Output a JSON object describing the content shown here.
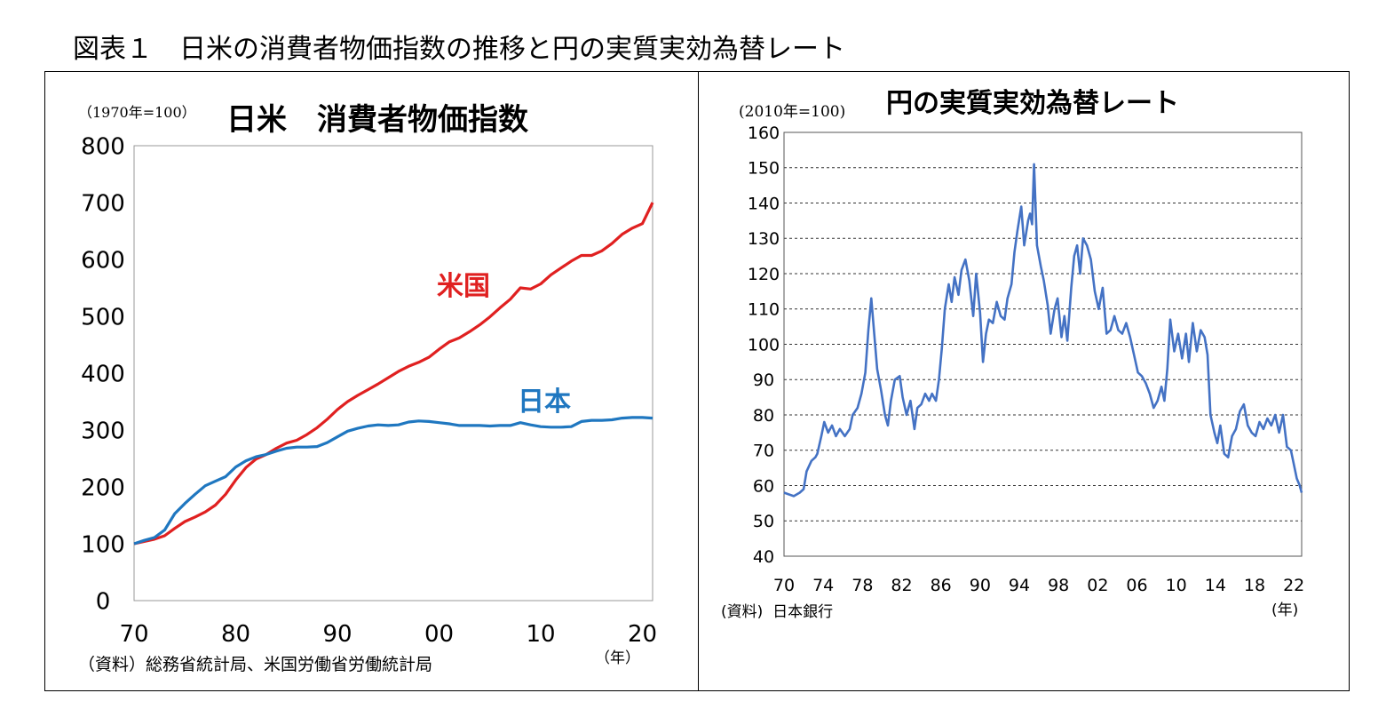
{
  "figure_title": "図表１　日米の消費者物価指数の推移と円の実質実効為替レート",
  "chart_data": [
    {
      "type": "line",
      "title": "日米　消費者物価指数",
      "unit_label": "（1970年=100）",
      "source": "（資料）総務省統計局、米国労働省労働統計局",
      "x_unit": "（年）",
      "xlim": [
        1970,
        2021
      ],
      "ylim": [
        0,
        800
      ],
      "x_ticks": [
        1970,
        1980,
        1990,
        2000,
        2010,
        2020
      ],
      "x_tick_labels": [
        "70",
        "80",
        "90",
        "00",
        "10",
        "20"
      ],
      "y_ticks": [
        0,
        100,
        200,
        300,
        400,
        500,
        600,
        700,
        800
      ],
      "y_tick_labels": [
        "0",
        "100",
        "200",
        "300",
        "400",
        "500",
        "600",
        "700",
        "800"
      ],
      "grid": false,
      "series": [
        {
          "name": "米国",
          "color": "#e02020",
          "x": [
            1970,
            1971,
            1972,
            1973,
            1974,
            1975,
            1976,
            1977,
            1978,
            1979,
            1980,
            1981,
            1982,
            1983,
            1984,
            1985,
            1986,
            1987,
            1988,
            1989,
            1990,
            1991,
            1992,
            1993,
            1994,
            1995,
            1996,
            1997,
            1998,
            1999,
            2000,
            2001,
            2002,
            2003,
            2004,
            2005,
            2006,
            2007,
            2008,
            2009,
            2010,
            2011,
            2012,
            2013,
            2014,
            2015,
            2016,
            2017,
            2018,
            2019,
            2020,
            2021
          ],
          "values": [
            100,
            104,
            108,
            114,
            127,
            139,
            147,
            156,
            168,
            187,
            212,
            234,
            249,
            257,
            268,
            277,
            282,
            292,
            304,
            319,
            336,
            350,
            361,
            371,
            381,
            392,
            403,
            412,
            419,
            428,
            442,
            455,
            462,
            473,
            485,
            499,
            515,
            530,
            550,
            548,
            557,
            573,
            585,
            597,
            607,
            607,
            615,
            628,
            644,
            655,
            663,
            700
          ]
        },
        {
          "name": "日本",
          "color": "#1f77c0",
          "x": [
            1970,
            1971,
            1972,
            1973,
            1974,
            1975,
            1976,
            1977,
            1978,
            1979,
            1980,
            1981,
            1982,
            1983,
            1984,
            1985,
            1986,
            1987,
            1988,
            1989,
            1990,
            1991,
            1992,
            1993,
            1994,
            1995,
            1996,
            1997,
            1998,
            1999,
            2000,
            2001,
            2002,
            2003,
            2004,
            2005,
            2006,
            2007,
            2008,
            2009,
            2010,
            2011,
            2012,
            2013,
            2014,
            2015,
            2016,
            2017,
            2018,
            2019,
            2020,
            2021
          ],
          "values": [
            100,
            106,
            111,
            124,
            153,
            171,
            187,
            202,
            210,
            218,
            235,
            246,
            253,
            257,
            263,
            268,
            270,
            270,
            271,
            278,
            288,
            298,
            303,
            307,
            309,
            308,
            309,
            314,
            316,
            315,
            313,
            311,
            308,
            308,
            308,
            307,
            308,
            308,
            313,
            309,
            306,
            305,
            305,
            306,
            315,
            317,
            317,
            318,
            321,
            322,
            322,
            321
          ]
        }
      ],
      "series_label_position": "inline"
    },
    {
      "type": "line",
      "title": "円の実質実効為替レート",
      "unit_label": "(2010年=100)",
      "source": "(資料)  日本銀行",
      "x_unit": "(年)",
      "xlim": [
        1970,
        2022.8
      ],
      "ylim": [
        40,
        160
      ],
      "x_ticks": [
        1970,
        1974,
        1978,
        1982,
        1986,
        1990,
        1994,
        1998,
        2002,
        2006,
        2010,
        2014,
        2018,
        2022
      ],
      "x_tick_labels": [
        "70",
        "74",
        "78",
        "82",
        "86",
        "90",
        "94",
        "98",
        "02",
        "06",
        "10",
        "14",
        "18",
        "22"
      ],
      "y_ticks": [
        40,
        50,
        60,
        70,
        80,
        90,
        100,
        110,
        120,
        130,
        140,
        150,
        160
      ],
      "y_tick_labels": [
        "40",
        "50",
        "60",
        "70",
        "80",
        "90",
        "100",
        "110",
        "120",
        "130",
        "140",
        "150",
        "160"
      ],
      "grid": "horizontal-dashed",
      "series": [
        {
          "color": "#4472c4",
          "x": [
            1970,
            1971,
            1971.6,
            1972,
            1972.3,
            1972.8,
            1973.2,
            1973.4,
            1973.8,
            1974.1,
            1974.5,
            1974.9,
            1975.3,
            1975.7,
            1976.2,
            1976.7,
            1977,
            1977.5,
            1977.9,
            1978.3,
            1978.6,
            1978.9,
            1979.2,
            1979.5,
            1979.9,
            1980.3,
            1980.6,
            1980.9,
            1981.3,
            1981.8,
            1982.1,
            1982.5,
            1982.9,
            1983.3,
            1983.6,
            1984,
            1984.4,
            1984.8,
            1985.1,
            1985.5,
            1985.8,
            1986.1,
            1986.4,
            1986.8,
            1987.1,
            1987.4,
            1987.8,
            1988.1,
            1988.5,
            1988.9,
            1989.3,
            1989.6,
            1990,
            1990.3,
            1990.6,
            1990.9,
            1991.3,
            1991.7,
            1992.1,
            1992.5,
            1992.8,
            1993.2,
            1993.5,
            1993.8,
            1994.2,
            1994.5,
            1994.9,
            1995.1,
            1995.3,
            1995.5,
            1995.8,
            1996.2,
            1996.5,
            1996.9,
            1997.2,
            1997.6,
            1997.9,
            1998.3,
            1998.6,
            1998.9,
            1999.3,
            1999.6,
            1999.9,
            2000.2,
            2000.5,
            2000.9,
            2001.3,
            2001.7,
            2002.1,
            2002.5,
            2002.9,
            2003.3,
            2003.7,
            2004.1,
            2004.5,
            2004.9,
            2005.3,
            2005.7,
            2006.1,
            2006.5,
            2006.9,
            2007.3,
            2007.7,
            2008.1,
            2008.5,
            2008.8,
            2009.1,
            2009.4,
            2009.8,
            2010.2,
            2010.6,
            2011,
            2011.3,
            2011.7,
            2012.1,
            2012.5,
            2012.9,
            2013.2,
            2013.5,
            2013.9,
            2014.2,
            2014.5,
            2014.9,
            2015.3,
            2015.7,
            2016.1,
            2016.5,
            2016.9,
            2017.3,
            2017.7,
            2018.1,
            2018.5,
            2018.9,
            2019.3,
            2019.7,
            2020.1,
            2020.5,
            2020.9,
            2021.3,
            2021.7,
            2022,
            2022.3,
            2022.6,
            2022.8
          ],
          "values": [
            58,
            57,
            58,
            59,
            64,
            67,
            68,
            69,
            74,
            78,
            75,
            77,
            74,
            76,
            74,
            76,
            80,
            82,
            86,
            92,
            104,
            113,
            103,
            93,
            87,
            80,
            77,
            84,
            90,
            91,
            85,
            80,
            84,
            76,
            82,
            83,
            86,
            84,
            86,
            84,
            90,
            99,
            110,
            117,
            112,
            119,
            114,
            121,
            124,
            118,
            108,
            120,
            109,
            95,
            103,
            107,
            106,
            112,
            108,
            107,
            113,
            117,
            126,
            132,
            139,
            128,
            135,
            137,
            134,
            151,
            128,
            122,
            118,
            111,
            103,
            110,
            113,
            102,
            108,
            101,
            116,
            125,
            128,
            120,
            130,
            128,
            124,
            115,
            110,
            116,
            103,
            104,
            108,
            104,
            103,
            106,
            102,
            97,
            92,
            91,
            89,
            86,
            82,
            84,
            88,
            84,
            93,
            107,
            98,
            103,
            96,
            103,
            95,
            106,
            98,
            104,
            102,
            97,
            80,
            75,
            72,
            77,
            69,
            68,
            74,
            76,
            81,
            83,
            77,
            75,
            74,
            78,
            76,
            79,
            77,
            80,
            75,
            80,
            71,
            70,
            66,
            62,
            60,
            58
          ]
        }
      ]
    }
  ]
}
